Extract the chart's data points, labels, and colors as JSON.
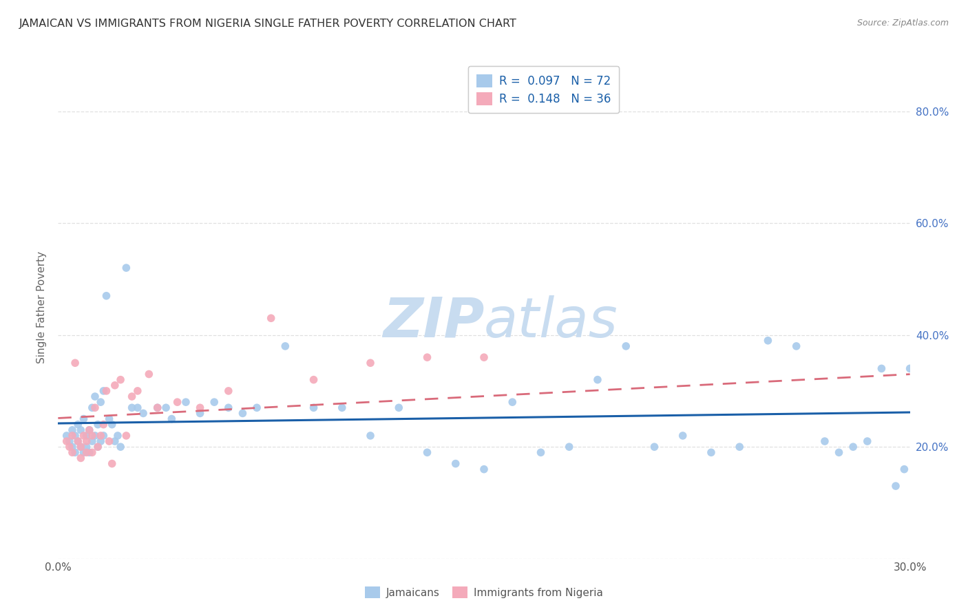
{
  "title": "JAMAICAN VS IMMIGRANTS FROM NIGERIA SINGLE FATHER POVERTY CORRELATION CHART",
  "source": "Source: ZipAtlas.com",
  "ylabel_label": "Single Father Poverty",
  "xlim": [
    0.0,
    0.3
  ],
  "ylim": [
    0.0,
    0.9
  ],
  "r1": 0.097,
  "n1": 72,
  "r2": 0.148,
  "n2": 36,
  "scatter_blue": "#A8CAEB",
  "scatter_pink": "#F4AABA",
  "line_blue": "#1A5FA8",
  "line_pink": "#D96A7A",
  "watermark_zip_color": "#C8DCF0",
  "watermark_atlas_color": "#C8DCF0",
  "background_color": "#FFFFFF",
  "grid_color": "#DDDDDD",
  "title_color": "#333333",
  "right_tick_color": "#4472C4",
  "source_color": "#888888",
  "legend_text_color": "#1A5FA8",
  "bottom_legend_color": "#555555",
  "jamaicans_x": [
    0.003,
    0.004,
    0.005,
    0.005,
    0.006,
    0.006,
    0.007,
    0.007,
    0.008,
    0.008,
    0.009,
    0.009,
    0.01,
    0.01,
    0.011,
    0.011,
    0.012,
    0.012,
    0.013,
    0.013,
    0.014,
    0.014,
    0.015,
    0.015,
    0.016,
    0.016,
    0.017,
    0.018,
    0.019,
    0.02,
    0.021,
    0.022,
    0.024,
    0.026,
    0.028,
    0.03,
    0.035,
    0.038,
    0.04,
    0.045,
    0.05,
    0.055,
    0.06,
    0.065,
    0.07,
    0.08,
    0.09,
    0.1,
    0.11,
    0.12,
    0.13,
    0.14,
    0.15,
    0.16,
    0.17,
    0.18,
    0.19,
    0.2,
    0.21,
    0.22,
    0.23,
    0.24,
    0.25,
    0.26,
    0.27,
    0.275,
    0.28,
    0.285,
    0.29,
    0.295,
    0.298,
    0.3
  ],
  "jamaicans_y": [
    0.22,
    0.21,
    0.23,
    0.2,
    0.22,
    0.19,
    0.24,
    0.21,
    0.23,
    0.2,
    0.25,
    0.19,
    0.22,
    0.2,
    0.23,
    0.19,
    0.27,
    0.21,
    0.29,
    0.22,
    0.24,
    0.2,
    0.28,
    0.21,
    0.3,
    0.22,
    0.47,
    0.25,
    0.24,
    0.21,
    0.22,
    0.2,
    0.52,
    0.27,
    0.27,
    0.26,
    0.27,
    0.27,
    0.25,
    0.28,
    0.26,
    0.28,
    0.27,
    0.26,
    0.27,
    0.38,
    0.27,
    0.27,
    0.22,
    0.27,
    0.19,
    0.17,
    0.16,
    0.28,
    0.19,
    0.2,
    0.32,
    0.38,
    0.2,
    0.22,
    0.19,
    0.2,
    0.39,
    0.38,
    0.21,
    0.19,
    0.2,
    0.21,
    0.34,
    0.13,
    0.16,
    0.34
  ],
  "nigeria_x": [
    0.003,
    0.004,
    0.005,
    0.005,
    0.006,
    0.007,
    0.008,
    0.008,
    0.009,
    0.01,
    0.01,
    0.011,
    0.012,
    0.012,
    0.013,
    0.014,
    0.015,
    0.016,
    0.017,
    0.018,
    0.019,
    0.02,
    0.022,
    0.024,
    0.026,
    0.028,
    0.032,
    0.035,
    0.042,
    0.05,
    0.06,
    0.075,
    0.09,
    0.11,
    0.13,
    0.15
  ],
  "nigeria_y": [
    0.21,
    0.2,
    0.22,
    0.19,
    0.35,
    0.21,
    0.2,
    0.18,
    0.22,
    0.21,
    0.19,
    0.23,
    0.19,
    0.22,
    0.27,
    0.2,
    0.22,
    0.24,
    0.3,
    0.21,
    0.17,
    0.31,
    0.32,
    0.22,
    0.29,
    0.3,
    0.33,
    0.27,
    0.28,
    0.27,
    0.3,
    0.43,
    0.32,
    0.35,
    0.36,
    0.36
  ]
}
